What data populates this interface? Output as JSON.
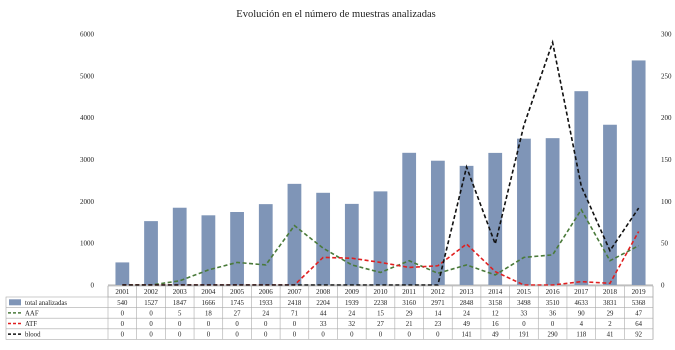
{
  "chart_data": {
    "type": "bar",
    "title": "Evolución en el número de muestras analizadas",
    "categories": [
      "2001",
      "2002",
      "2003",
      "2004",
      "2005",
      "2006",
      "2007",
      "2008",
      "2009",
      "2010",
      "2011",
      "2012",
      "2013",
      "2014",
      "2015",
      "2016",
      "2017",
      "2018",
      "2019"
    ],
    "y_left": {
      "min": 0,
      "max": 6000,
      "ticks": [
        0,
        1000,
        2000,
        3000,
        4000,
        5000,
        6000
      ]
    },
    "y_right": {
      "min": 0,
      "max": 300,
      "ticks": [
        0,
        50,
        100,
        150,
        200,
        250,
        300
      ]
    },
    "grid": false,
    "legend": "data-table-bottom",
    "series": [
      {
        "name": "total analizadas",
        "kind": "bar",
        "axis": "left",
        "color": "#7f95b7",
        "values": [
          540,
          1527,
          1847,
          1666,
          1745,
          1933,
          2418,
          2204,
          1939,
          2238,
          3160,
          2971,
          2848,
          3158,
          3498,
          3510,
          4633,
          3831,
          5368
        ]
      },
      {
        "name": "AAF",
        "kind": "line",
        "axis": "right",
        "color": "#4a7a3a",
        "dash": "4,2.5",
        "values": [
          0,
          0,
          5,
          18,
          27,
          24,
          71,
          44,
          24,
          15,
          29,
          14,
          24,
          12,
          33,
          36,
          90,
          29,
          47
        ]
      },
      {
        "name": "ATF",
        "kind": "line",
        "axis": "right",
        "color": "#e02020",
        "dash": "4,2.5",
        "values": [
          0,
          0,
          0,
          0,
          0,
          0,
          0,
          33,
          32,
          27,
          21,
          23,
          49,
          16,
          0,
          0,
          4,
          2,
          64
        ]
      },
      {
        "name": "blood",
        "kind": "line",
        "axis": "right",
        "color": "#111111",
        "dash": "4,2.5",
        "values": [
          0,
          0,
          0,
          0,
          0,
          0,
          0,
          0,
          0,
          0,
          0,
          0,
          141,
          49,
          191,
          290,
          118,
          41,
          92
        ]
      }
    ]
  }
}
